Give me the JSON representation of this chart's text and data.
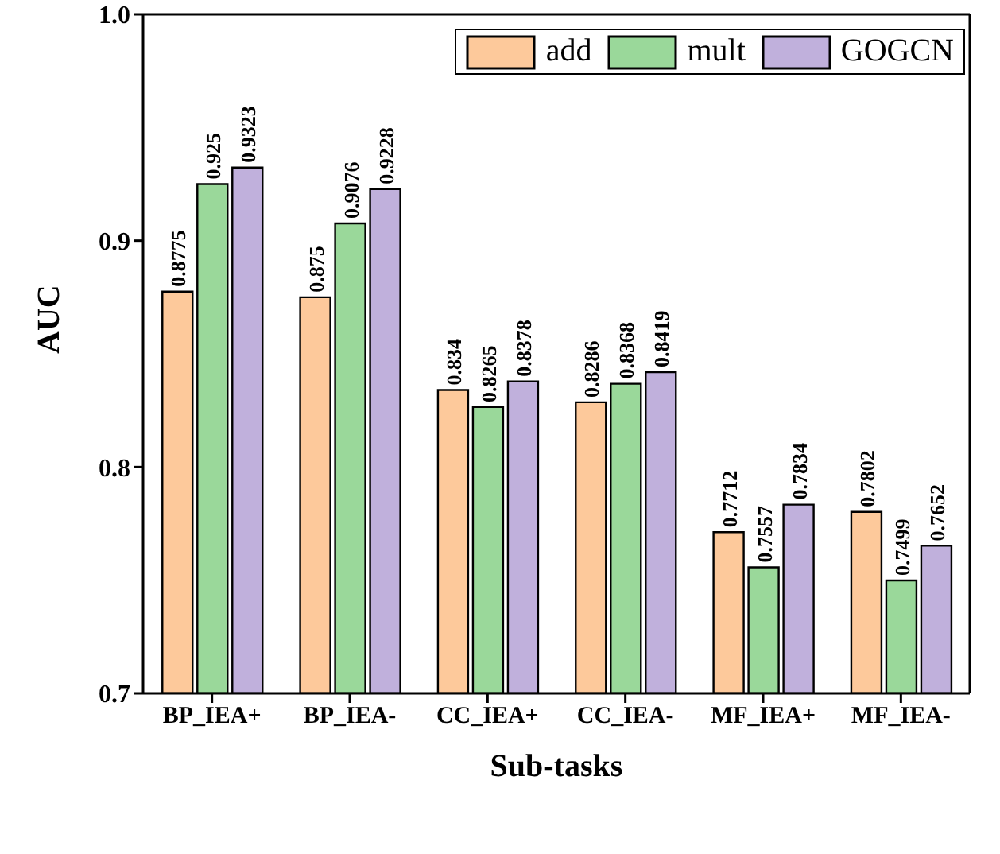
{
  "chart_data": {
    "type": "bar",
    "xlabel": "Sub-tasks",
    "ylabel": "AUC",
    "categories": [
      "BP_IEA+",
      "BP_IEA-",
      "CC_IEA+",
      "CC_IEA-",
      "MF_IEA+",
      "MF_IEA-"
    ],
    "series": [
      {
        "name": "add",
        "color": "#fdc99b",
        "values": [
          0.8775,
          0.875,
          0.834,
          0.8286,
          0.7712,
          0.7802
        ]
      },
      {
        "name": "mult",
        "color": "#9ad89a",
        "values": [
          0.925,
          0.9076,
          0.8265,
          0.8368,
          0.7557,
          0.7499
        ]
      },
      {
        "name": "GOGCN",
        "color": "#c0b0dc",
        "values": [
          0.9323,
          0.9228,
          0.8378,
          0.8419,
          0.7834,
          0.7652
        ]
      }
    ],
    "ylim": [
      0.7,
      1.0
    ],
    "yticks": [
      0.7,
      0.8,
      0.9,
      {
        "value": 1.0,
        "label": "1.0"
      }
    ],
    "data_labels": true,
    "legend": "top right",
    "grid": false
  }
}
